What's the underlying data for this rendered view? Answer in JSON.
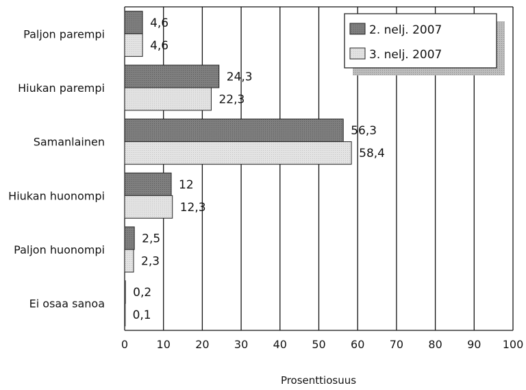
{
  "chart_data": {
    "type": "bar",
    "orientation": "horizontal",
    "categories": [
      "Paljon parempi",
      "Hiukan parempi",
      "Samanlainen",
      "Hiukan huonompi",
      "Paljon huonompi",
      "Ei osaa sanoa"
    ],
    "series": [
      {
        "name": "2. nelj. 2007",
        "color": "#7f7f7f",
        "values": [
          4.6,
          24.3,
          56.3,
          12,
          2.5,
          0.2
        ],
        "labels": [
          "4,6",
          "24,3",
          "56,3",
          "12",
          "2,5",
          "0,2"
        ]
      },
      {
        "name": "3. nelj. 2007",
        "color": "#e3e3e3",
        "values": [
          4.6,
          22.3,
          58.4,
          12.3,
          2.3,
          0.1
        ],
        "labels": [
          "4,6",
          "22,3",
          "58,4",
          "12,3",
          "2,3",
          "0,1"
        ]
      }
    ],
    "xlabel": "Prosenttiosuus",
    "xlim": [
      0,
      100
    ],
    "xticks": [
      "0",
      "10",
      "20",
      "30",
      "40",
      "50",
      "60",
      "70",
      "80",
      "90",
      "100"
    ],
    "grid": "vertical",
    "legend": "top-right"
  }
}
